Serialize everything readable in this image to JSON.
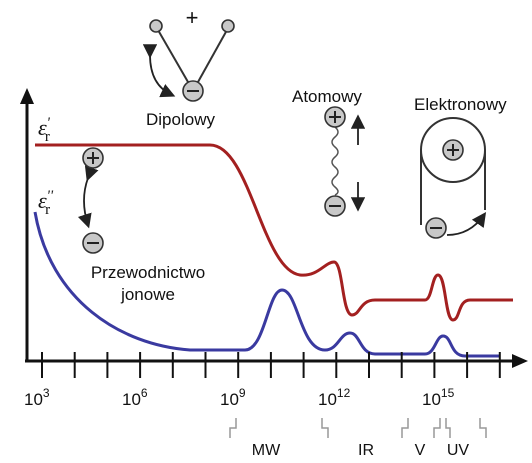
{
  "axes": {
    "y_labels": [
      {
        "symbol": "ε",
        "sup": "'",
        "sub": "r"
      },
      {
        "symbol": "ε",
        "sup": "''",
        "sub": "r"
      }
    ],
    "x_ticks": [
      {
        "base": "10",
        "exp": "3"
      },
      {
        "base": "10",
        "exp": "6"
      },
      {
        "base": "10",
        "exp": "9"
      },
      {
        "base": "10",
        "exp": "12"
      },
      {
        "base": "10",
        "exp": "15"
      }
    ]
  },
  "mechanisms": {
    "dipolar": "Dipolowy",
    "dipole_sign": "+",
    "atomic": "Atomowy",
    "electronic": "Elektronowy",
    "ionic": [
      "Przewodnictwo",
      "jonowe"
    ]
  },
  "bands": [
    "MW",
    "IR",
    "V",
    "UV"
  ]
}
